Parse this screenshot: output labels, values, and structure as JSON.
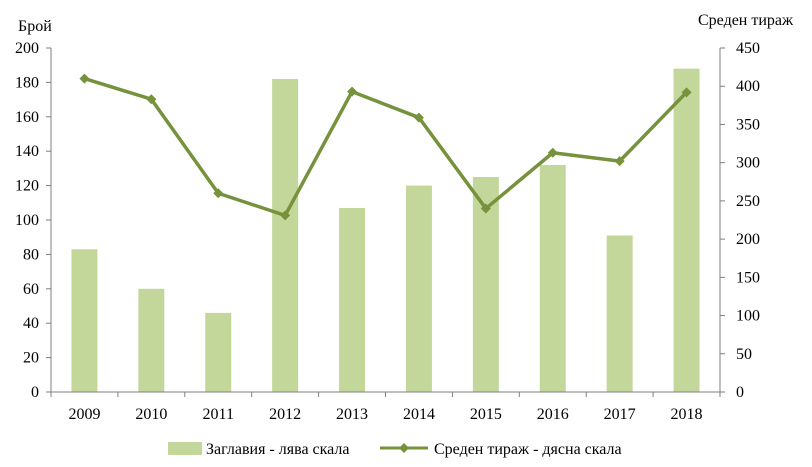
{
  "chart_data": {
    "type": "bar",
    "categories": [
      "2009",
      "2010",
      "2011",
      "2012",
      "2013",
      "2014",
      "2015",
      "2016",
      "2017",
      "2018"
    ],
    "series": [
      {
        "name": "Заглавия - лява скала",
        "type": "bar",
        "axis": "left",
        "color": "#c4d79b",
        "values": [
          83,
          60,
          46,
          182,
          107,
          120,
          125,
          132,
          91,
          188
        ]
      },
      {
        "name": "Среден тираж - дясна скала",
        "type": "line",
        "axis": "right",
        "color": "#76923c",
        "marker": "diamond",
        "values": [
          410,
          383,
          260,
          231,
          393,
          359,
          240,
          313,
          302,
          392
        ]
      }
    ],
    "ylabel_left": "Брой",
    "ylabel_right": "Среден тираж",
    "ylim_left": [
      0,
      200
    ],
    "ylim_right": [
      0,
      450
    ],
    "yticks_left": [
      "0",
      "20",
      "40",
      "60",
      "80",
      "100",
      "120",
      "140",
      "160",
      "180",
      "200"
    ],
    "yticks_right": [
      "0",
      "50",
      "100",
      "150",
      "200",
      "250",
      "300",
      "350",
      "400",
      "450"
    ],
    "grid": false,
    "legend_position": "bottom",
    "axis_color": "#7f7f7f"
  }
}
